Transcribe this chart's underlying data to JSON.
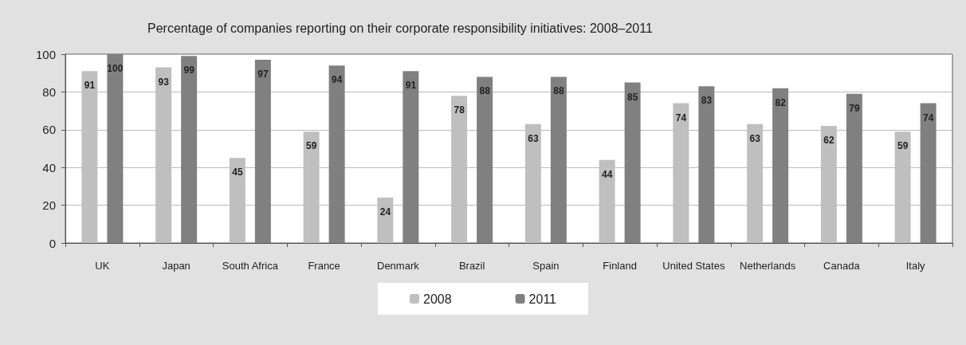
{
  "chart_data": {
    "type": "bar",
    "title": "Percentage of companies reporting on their corporate responsibility initiatives: 2008–2011",
    "categories": [
      "UK",
      "Japan",
      "South Africa",
      "France",
      "Denmark",
      "Brazil",
      "Spain",
      "Finland",
      "United States",
      "Netherlands",
      "Canada",
      "Italy"
    ],
    "series": [
      {
        "name": "2008",
        "color": "#bfbfbf",
        "values": [
          91,
          93,
          45,
          59,
          24,
          78,
          63,
          44,
          74,
          63,
          62,
          59
        ]
      },
      {
        "name": "2011",
        "color": "#808080",
        "values": [
          100,
          99,
          97,
          94,
          91,
          88,
          88,
          85,
          83,
          82,
          79,
          74
        ]
      }
    ],
    "ylim": [
      0,
      100
    ],
    "yticks": [
      0,
      20,
      40,
      60,
      80,
      100
    ],
    "grid": "y",
    "legend": "bottom",
    "data_labels": true
  }
}
